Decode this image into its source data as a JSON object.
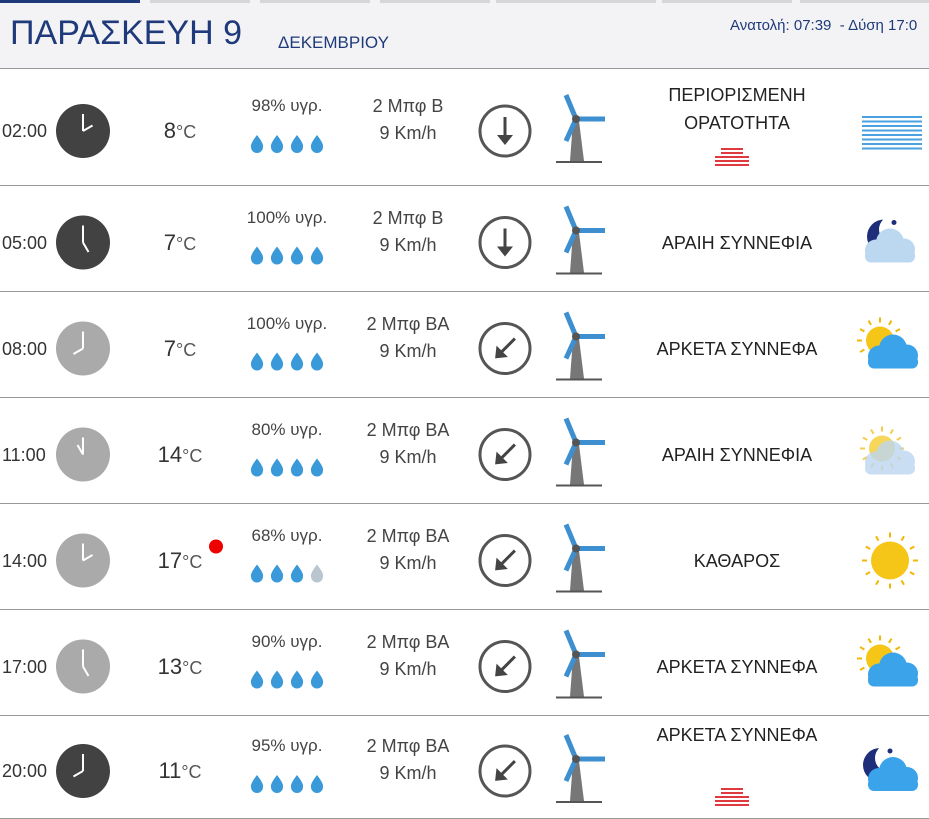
{
  "header": {
    "day": "ΠΑΡΑΣΚΕΥΗ 9",
    "month": "ΔΕΚΕΜΒΡΙΟΥ",
    "sunrise": "Ανατολή: 07:39",
    "sunset": "- Δύση 17:0"
  },
  "rows": [
    {
      "time": "02:00",
      "temp": "8",
      "unit": "°C",
      "humidity": "98% υγρ.",
      "wind": "2 Μπφ Β",
      "speed": "9 Km/h",
      "condition": "ΠΕΡΙΟΡΙΣΜΕΝΗ ΟΡΑΤΟΤΗΤΑ"
    },
    {
      "time": "05:00",
      "temp": "7",
      "unit": "°C",
      "humidity": "100% υγρ.",
      "wind": "2 Μπφ Β",
      "speed": "9 Km/h",
      "condition": "ΑΡΑΙΗ ΣΥΝΝΕΦΙΑ"
    },
    {
      "time": "08:00",
      "temp": "7",
      "unit": "°C",
      "humidity": "100% υγρ.",
      "wind": "2 Μπφ ΒΑ",
      "speed": "9 Km/h",
      "condition": "ΑΡΚΕΤΑ ΣΥΝΝΕΦΑ"
    },
    {
      "time": "11:00",
      "temp": "14",
      "unit": "°C",
      "humidity": "80% υγρ.",
      "wind": "2 Μπφ ΒΑ",
      "speed": "9 Km/h",
      "condition": "ΑΡΑΙΗ ΣΥΝΝΕΦΙΑ"
    },
    {
      "time": "14:00",
      "temp": "17",
      "unit": "°C",
      "humidity": "68% υγρ.",
      "wind": "2 Μπφ ΒΑ",
      "speed": "9 Km/h",
      "condition": "ΚΑΘΑΡΟΣ"
    },
    {
      "time": "17:00",
      "temp": "13",
      "unit": "°C",
      "humidity": "90% υγρ.",
      "wind": "2 Μπφ ΒΑ",
      "speed": "9 Km/h",
      "condition": "ΑΡΚΕΤΑ ΣΥΝΝΕΦΑ"
    },
    {
      "time": "20:00",
      "temp": "11",
      "unit": "°C",
      "humidity": "95% υγρ.",
      "wind": "2 Μπφ ΒΑ",
      "speed": "9 Km/h",
      "condition": "ΑΡΚΕΤΑ ΣΥΝΝΕΦΑ"
    }
  ]
}
